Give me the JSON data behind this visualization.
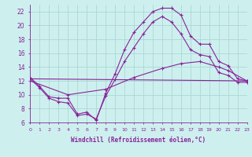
{
  "xlabel": "Windchill (Refroidissement éolien,°C)",
  "x_ticks": [
    0,
    1,
    2,
    3,
    4,
    5,
    6,
    7,
    8,
    9,
    10,
    11,
    12,
    13,
    14,
    15,
    16,
    17,
    18,
    19,
    20,
    21,
    22,
    23
  ],
  "ylim": [
    6,
    23
  ],
  "xlim": [
    0,
    23
  ],
  "yticks": [
    6,
    8,
    10,
    12,
    14,
    16,
    18,
    20,
    22
  ],
  "bg_color": "#cdf0ee",
  "grid_color": "#aad8d5",
  "line_color": "#882299",
  "series": [
    {
      "x": [
        0,
        1,
        2,
        3,
        4,
        5,
        6,
        7,
        8,
        9,
        10,
        11,
        12,
        13,
        14,
        15,
        16,
        17,
        18,
        19,
        20,
        21,
        22,
        23
      ],
      "y": [
        12.5,
        11.2,
        9.7,
        9.5,
        9.5,
        7.2,
        7.5,
        6.3,
        10.2,
        13.0,
        16.5,
        19.0,
        20.5,
        22.0,
        22.5,
        22.5,
        21.5,
        18.5,
        17.3,
        17.3,
        14.8,
        14.2,
        12.3,
        12.0
      ]
    },
    {
      "x": [
        0,
        1,
        2,
        3,
        4,
        5,
        6,
        7,
        8,
        9,
        10,
        11,
        12,
        13,
        14,
        15,
        16,
        17,
        18,
        19,
        20,
        21,
        22,
        23
      ],
      "y": [
        12.3,
        11.0,
        9.5,
        9.0,
        8.8,
        7.0,
        7.2,
        6.5,
        9.8,
        12.2,
        14.8,
        16.8,
        18.8,
        20.5,
        21.3,
        20.5,
        18.8,
        16.5,
        15.8,
        15.5,
        13.2,
        12.8,
        11.8,
        11.8
      ]
    },
    {
      "x": [
        0,
        23
      ],
      "y": [
        12.3,
        12.0
      ]
    },
    {
      "x": [
        0,
        4,
        8,
        11,
        14,
        16,
        18,
        20,
        21,
        23
      ],
      "y": [
        12.0,
        10.0,
        10.8,
        12.5,
        13.8,
        14.5,
        14.8,
        14.0,
        13.5,
        12.0
      ]
    }
  ]
}
